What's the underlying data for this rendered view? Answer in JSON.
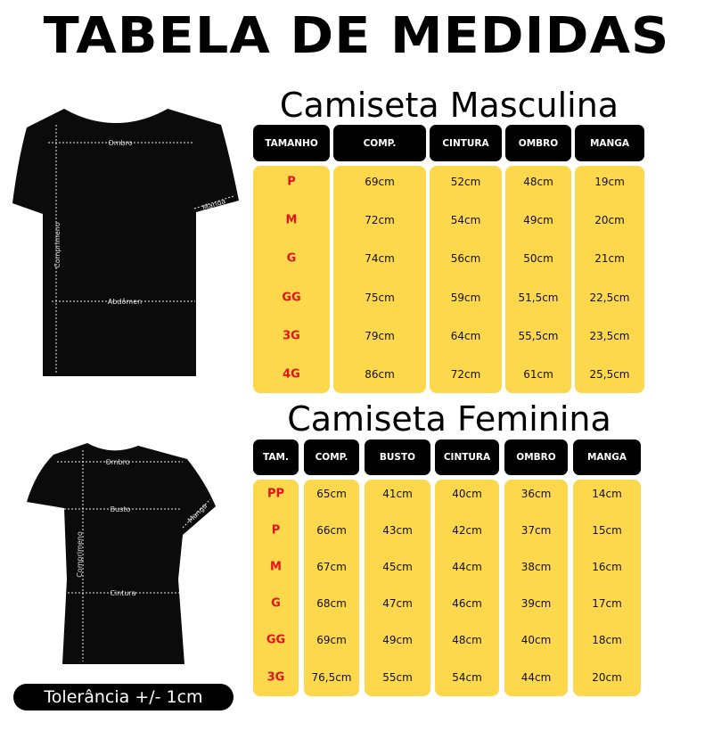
{
  "title": "TABELA DE MEDIDAS",
  "male": {
    "title": "Camiseta Masculina",
    "headers": [
      "TAMANHO",
      "COMP.",
      "CINTURA",
      "OMBRO",
      "MANGA"
    ],
    "rows": [
      [
        "P",
        "69cm",
        "52cm",
        "48cm",
        "19cm"
      ],
      [
        "M",
        "72cm",
        "54cm",
        "49cm",
        "20cm"
      ],
      [
        "G",
        "74cm",
        "56cm",
        "50cm",
        "21cm"
      ],
      [
        "GG",
        "75cm",
        "59cm",
        "51,5cm",
        "22,5cm"
      ],
      [
        "3G",
        "79cm",
        "64cm",
        "55,5cm",
        "23,5cm"
      ],
      [
        "4G",
        "86cm",
        "72cm",
        "61cm",
        "25,5cm"
      ]
    ],
    "diagram_labels": {
      "ombro": "Ombro",
      "manga": "Manga",
      "comprimento": "Comprimeno",
      "abdomen": "Abdômen"
    }
  },
  "female": {
    "title": "Camiseta Feminina",
    "headers": [
      "TAM.",
      "COMP.",
      "BUSTO",
      "CINTURA",
      "OMBRO",
      "MANGA"
    ],
    "rows": [
      [
        "PP",
        "65cm",
        "41cm",
        "40cm",
        "36cm",
        "14cm"
      ],
      [
        "P",
        "66cm",
        "43cm",
        "42cm",
        "37cm",
        "15cm"
      ],
      [
        "M",
        "67cm",
        "45cm",
        "44cm",
        "38cm",
        "16cm"
      ],
      [
        "G",
        "68cm",
        "47cm",
        "46cm",
        "39cm",
        "17cm"
      ],
      [
        "GG",
        "69cm",
        "49cm",
        "48cm",
        "40cm",
        "18cm"
      ],
      [
        "3G",
        "76,5cm",
        "55cm",
        "54cm",
        "44cm",
        "20cm"
      ]
    ],
    "diagram_labels": {
      "ombro": "Ombro",
      "busto": "Busto",
      "manga": "Manga",
      "comprimento": "Comprimeno",
      "cintura": "Cintura"
    }
  },
  "tolerance": "Tolerância +/- 1cm",
  "colors": {
    "cell_bg": "#fdd84d",
    "header_bg": "#000000",
    "size_text": "#e0141a"
  }
}
